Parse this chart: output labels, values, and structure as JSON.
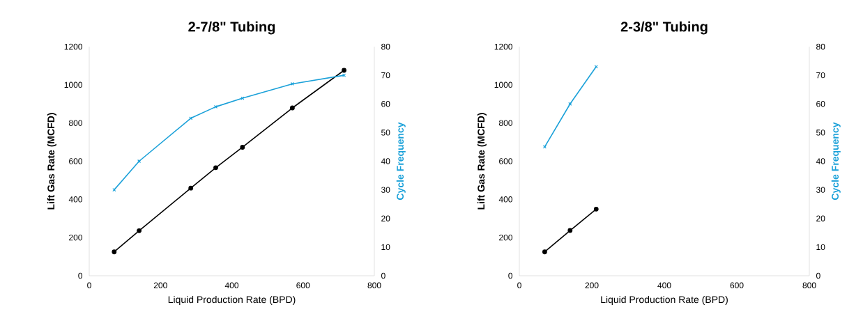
{
  "chart_data": [
    {
      "type": "line",
      "title": "2-7/8\" Tubing",
      "xlabel": "Liquid Production Rate (BPD)",
      "ylabel": "Lift Gas Rate (MCFD)",
      "y2label": "Cycle Frequency",
      "xlim": [
        0,
        800
      ],
      "xticks": [
        0,
        200,
        400,
        600,
        800
      ],
      "ylim": [
        0,
        1200
      ],
      "yticks": [
        0,
        200,
        400,
        600,
        800,
        1000,
        1200
      ],
      "y2lim": [
        0,
        80
      ],
      "y2ticks": [
        0,
        10,
        20,
        30,
        40,
        50,
        60,
        70,
        80
      ],
      "grid": false,
      "legend": false,
      "series": [
        {
          "color": "#000000",
          "marker": "circle",
          "x": [
            70,
            140,
            285,
            355,
            430,
            570,
            715
          ],
          "values": [
            125,
            236,
            459,
            566,
            673,
            879,
            1076
          ]
        },
        {
          "color": "#1ba1d9",
          "marker": "cross",
          "axis": "y2",
          "x": [
            70,
            140,
            285,
            355,
            430,
            570,
            715
          ],
          "values": [
            30,
            40,
            55,
            59,
            62,
            67,
            70
          ]
        }
      ]
    },
    {
      "type": "line",
      "title": "2-3/8\" Tubing",
      "xlabel": "Liquid Production Rate (BPD)",
      "ylabel": "Lift Gas Rate (MCFD)",
      "y2label": "Cycle Frequency",
      "xlim": [
        0,
        800
      ],
      "xticks": [
        0,
        200,
        400,
        600,
        800
      ],
      "ylim": [
        0,
        1200
      ],
      "yticks": [
        0,
        200,
        400,
        600,
        800,
        1000,
        1200
      ],
      "y2lim": [
        0,
        80
      ],
      "y2ticks": [
        0,
        10,
        20,
        30,
        40,
        50,
        60,
        70,
        80
      ],
      "grid": false,
      "legend": false,
      "series": [
        {
          "color": "#000000",
          "marker": "circle",
          "x": [
            70,
            140,
            212
          ],
          "values": [
            125,
            237,
            349
          ]
        },
        {
          "color": "#1ba1d9",
          "marker": "cross",
          "axis": "y2",
          "x": [
            70,
            140,
            212
          ],
          "values": [
            45,
            60,
            73
          ]
        }
      ]
    }
  ]
}
